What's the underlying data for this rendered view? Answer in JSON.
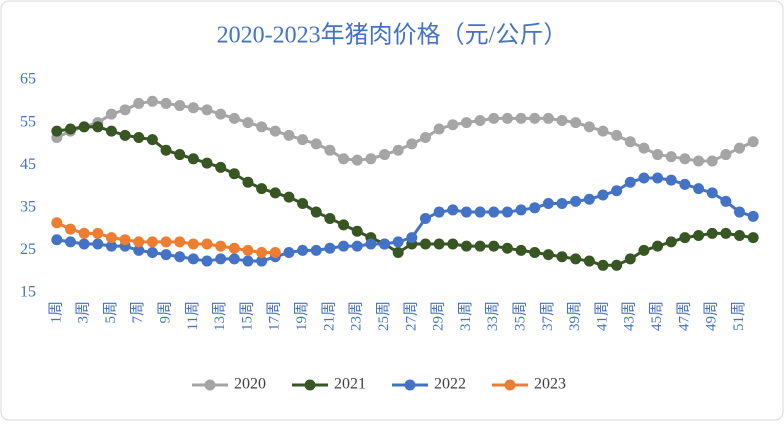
{
  "chart_data": {
    "type": "line",
    "title": "2020-2023年猪肉价格（元/公斤）",
    "categories": [
      "1周",
      null,
      "3周",
      null,
      "5周",
      null,
      "7周",
      null,
      "9周",
      null,
      "11周",
      null,
      "13周",
      null,
      "15周",
      null,
      "17周",
      null,
      "19周",
      null,
      "21周",
      null,
      "23周",
      null,
      "25周",
      null,
      "27周",
      null,
      "29周",
      null,
      "31周",
      null,
      "33周",
      null,
      "35周",
      null,
      "37周",
      null,
      "39周",
      null,
      "41周",
      null,
      "43周",
      null,
      "45周",
      null,
      "47周",
      null,
      "49周",
      null,
      "51周",
      null
    ],
    "series": [
      {
        "name": "2020",
        "color": "#a5a5a5",
        "values": [
          51.5,
          53,
          54,
          55,
          57,
          58,
          59.5,
          60,
          59.5,
          59,
          58.5,
          58,
          57,
          56,
          55,
          54,
          53,
          52,
          51,
          50,
          48.5,
          46.5,
          46.2,
          46.5,
          47.5,
          48.5,
          50,
          51.5,
          53.5,
          54.5,
          55,
          55.5,
          56,
          56,
          56,
          56,
          56,
          55.5,
          55,
          54,
          53,
          52,
          50.5,
          49,
          47.5,
          47,
          46.5,
          46,
          46,
          47.5,
          49,
          50.5
        ]
      },
      {
        "name": "2021",
        "color": "#375623",
        "values": [
          53,
          53.5,
          54,
          54,
          53,
          52,
          51.5,
          51,
          48.5,
          47.5,
          46.5,
          45.5,
          44.5,
          43,
          41,
          39.5,
          38.5,
          37.5,
          36,
          34,
          32.5,
          31,
          29.5,
          28,
          26.5,
          24.5,
          26.5,
          26.5,
          26.5,
          26.5,
          26,
          26,
          26,
          25.5,
          25,
          24.5,
          24,
          23.5,
          23,
          22.5,
          21.5,
          21.5,
          23,
          25,
          26,
          27,
          28,
          28.5,
          29,
          29,
          28.5,
          28
        ]
      },
      {
        "name": "2022",
        "color": "#4472c4",
        "values": [
          27.5,
          27,
          26.5,
          26.5,
          26,
          26,
          25,
          24.5,
          24,
          23.5,
          23,
          22.5,
          23,
          23,
          22.5,
          22.5,
          23.5,
          24.5,
          25,
          25,
          25.5,
          26,
          26,
          26.5,
          26.5,
          27,
          28,
          32.5,
          34,
          34.5,
          34,
          34,
          34,
          34,
          34.5,
          35,
          36,
          36,
          36.5,
          37,
          38,
          39,
          41,
          42,
          42,
          41.5,
          40.5,
          39.5,
          38.5,
          36.5,
          34,
          33
        ]
      },
      {
        "name": "2023",
        "color": "#ed7d31",
        "values": [
          31.5,
          30,
          29,
          29,
          28,
          27.5,
          27,
          27,
          27,
          27,
          26.5,
          26.5,
          26,
          25.5,
          25,
          24.5,
          24.5,
          null,
          null,
          null,
          null,
          null,
          null,
          null,
          null,
          null,
          null,
          null,
          null,
          null,
          null,
          null,
          null,
          null,
          null,
          null,
          null,
          null,
          null,
          null,
          null,
          null,
          null,
          null,
          null,
          null,
          null,
          null,
          null,
          null,
          null,
          null
        ]
      }
    ],
    "ylim": [
      15,
      65
    ],
    "yticks": [
      15,
      25,
      35,
      45,
      55,
      65
    ],
    "grid": false,
    "legend": "bottom"
  }
}
